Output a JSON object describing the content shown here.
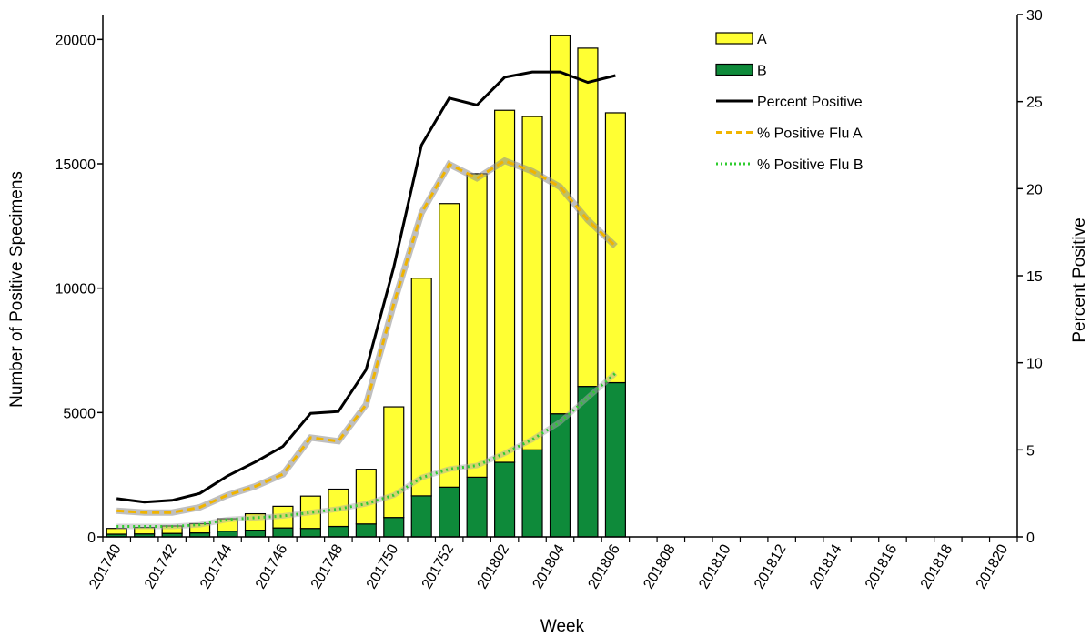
{
  "chart_data": {
    "type": "bar",
    "stacked": true,
    "xlabel": "Week",
    "ylabel": "Number of Positive Specimens",
    "y2label": "Percent Positive",
    "ylim": [
      0,
      21000
    ],
    "y2lim": [
      0,
      30
    ],
    "yticks": [
      0,
      5000,
      10000,
      15000,
      20000
    ],
    "y2ticks": [
      0,
      5,
      10,
      15,
      20,
      25,
      30
    ],
    "weeks": [
      "201740",
      "201741",
      "201742",
      "201743",
      "201744",
      "201745",
      "201746",
      "201747",
      "201748",
      "201749",
      "201750",
      "201751",
      "201752",
      "201801",
      "201802",
      "201803",
      "201804",
      "201805",
      "201806",
      "201807",
      "201808",
      "201809",
      "201810",
      "201811",
      "201812",
      "201813",
      "201814",
      "201815",
      "201816",
      "201817",
      "201818",
      "201819",
      "201820"
    ],
    "tick_labels": [
      "201740",
      "201742",
      "201744",
      "201746",
      "201748",
      "201750",
      "201752",
      "201802",
      "201804",
      "201806",
      "201808",
      "201810",
      "201812",
      "201814",
      "201816",
      "201818",
      "201820"
    ],
    "series": [
      {
        "name": "A",
        "kind": "bar",
        "color": "#ffff33",
        "values": [
          230,
          260,
          300,
          370,
          500,
          660,
          870,
          1300,
          1500,
          2200,
          4450,
          8750,
          11400,
          12200,
          14150,
          13400,
          15200,
          13600,
          10850
        ]
      },
      {
        "name": "B",
        "kind": "bar",
        "color": "#0e8a3a",
        "values": [
          110,
          120,
          140,
          160,
          230,
          270,
          360,
          340,
          420,
          520,
          780,
          1650,
          2000,
          2400,
          3000,
          3500,
          4950,
          6050,
          6200
        ]
      },
      {
        "name": "Percent Positive",
        "kind": "line",
        "axis": "right",
        "color": "#000000",
        "values": [
          2.2,
          2.0,
          2.1,
          2.5,
          3.5,
          4.3,
          5.2,
          7.1,
          7.2,
          9.6,
          15.5,
          22.5,
          25.2,
          24.8,
          26.4,
          26.7,
          26.7,
          26.1,
          26.5
        ]
      },
      {
        "name": "% Positive Flu A",
        "kind": "line",
        "style": "dashed",
        "axis": "right",
        "color": "#f0b400",
        "values": [
          1.5,
          1.4,
          1.4,
          1.7,
          2.4,
          2.9,
          3.6,
          5.7,
          5.5,
          7.6,
          13.4,
          18.6,
          21.4,
          20.6,
          21.6,
          21.0,
          20.1,
          18.2,
          16.7
        ]
      },
      {
        "name": "% Positive Flu B",
        "kind": "line",
        "style": "dotted",
        "axis": "right",
        "color": "#2ecc2e",
        "values": [
          0.6,
          0.6,
          0.6,
          0.7,
          1.0,
          1.1,
          1.2,
          1.4,
          1.6,
          1.9,
          2.4,
          3.4,
          3.9,
          4.1,
          4.8,
          5.6,
          6.6,
          8.0,
          9.4
        ]
      }
    ],
    "legend": {
      "placement": "top-right"
    }
  }
}
